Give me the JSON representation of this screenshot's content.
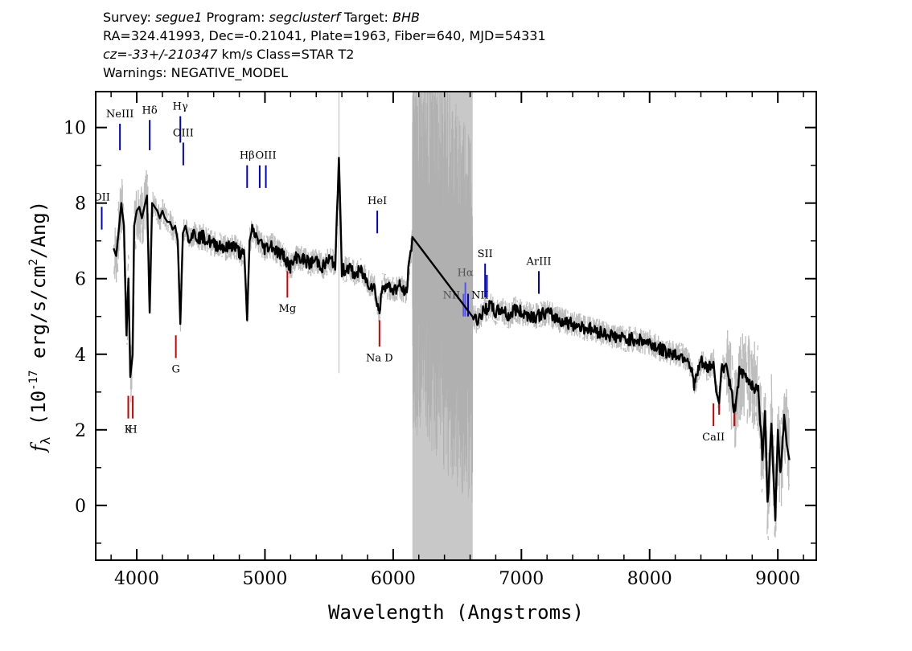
{
  "header": {
    "line1": {
      "survey_label": "Survey: ",
      "survey": "segue1",
      "program_label": " Program: ",
      "program": "segclusterf",
      "target_label": " Target: ",
      "target": "BHB"
    },
    "line2": "RA=324.41993, Dec=-0.21041, Plate=1963, Fiber=640, MJD=54331",
    "line3": {
      "cz": "cz=-33+/-210347",
      "rest": " km/s Class=STAR T2"
    },
    "line4": "Warnings: NEGATIVE_MODEL"
  },
  "chart_data": {
    "type": "line",
    "xlabel": "Wavelength (Angstroms)",
    "ylabel": "f_λ (10^-17 erg/s/cm^2/Ang)",
    "xlim": [
      3680,
      9300
    ],
    "ylim": [
      -1.45,
      10.95
    ],
    "x_ticks": [
      4000,
      5000,
      6000,
      7000,
      8000,
      9000
    ],
    "y_ticks": [
      0,
      2,
      4,
      6,
      8,
      10
    ],
    "masked_region": [
      6150,
      6620
    ],
    "series": [
      {
        "style": "smoothed",
        "color": "#000000",
        "x": [
          3820,
          3840,
          3860,
          3880,
          3900,
          3920,
          3935,
          3950,
          3968,
          3980,
          4000,
          4020,
          4040,
          4060,
          4080,
          4101,
          4120,
          4140,
          4160,
          4180,
          4200,
          4220,
          4240,
          4260,
          4280,
          4300,
          4320,
          4340,
          4360,
          4380,
          4400,
          4440,
          4480,
          4520,
          4560,
          4600,
          4650,
          4700,
          4750,
          4800,
          4840,
          4861,
          4880,
          4900,
          4950,
          5000,
          5050,
          5100,
          5150,
          5200,
          5250,
          5300,
          5350,
          5400,
          5450,
          5500,
          5550,
          5577,
          5600,
          5650,
          5700,
          5750,
          5800,
          5850,
          5893,
          5920,
          5950,
          6000,
          6050,
          6100,
          6150,
          6620,
          6650,
          6700,
          6750,
          6800,
          6850,
          6900,
          6950,
          7000,
          7100,
          7200,
          7300,
          7400,
          7500,
          7600,
          7700,
          7800,
          7900,
          8000,
          8100,
          8200,
          8300,
          8350,
          8400,
          8450,
          8498,
          8520,
          8542,
          8560,
          8600,
          8620,
          8662,
          8700,
          8750,
          8800,
          8850,
          8880,
          8900,
          8920,
          8950,
          8980,
          9000,
          9020,
          9050,
          9070,
          9090
        ],
        "y": [
          6.8,
          6.6,
          7.3,
          8.0,
          7.4,
          4.5,
          6.0,
          3.4,
          4.0,
          7.4,
          7.8,
          7.9,
          7.6,
          7.9,
          8.2,
          5.1,
          8.0,
          7.9,
          7.8,
          7.6,
          7.8,
          7.6,
          7.5,
          7.5,
          7.3,
          7.4,
          7.0,
          4.8,
          7.2,
          7.4,
          7.1,
          7.2,
          7.1,
          7.1,
          7.0,
          6.9,
          6.9,
          6.8,
          6.9,
          6.7,
          6.6,
          4.9,
          7.0,
          7.3,
          7.0,
          6.8,
          6.9,
          6.7,
          6.6,
          6.3,
          6.6,
          6.5,
          6.4,
          6.5,
          6.3,
          6.5,
          6.4,
          9.2,
          6.2,
          6.3,
          6.1,
          6.2,
          5.9,
          5.8,
          5.1,
          5.9,
          5.8,
          5.7,
          5.8,
          5.6,
          7.1,
          5.0,
          4.9,
          5.1,
          5.3,
          5.1,
          5.2,
          5.0,
          5.2,
          5.1,
          5.0,
          5.1,
          4.9,
          4.8,
          4.7,
          4.6,
          4.5,
          4.4,
          4.4,
          4.3,
          4.1,
          4.0,
          3.9,
          3.2,
          3.8,
          3.6,
          3.8,
          3.0,
          2.7,
          3.6,
          3.7,
          3.3,
          2.5,
          3.5,
          3.4,
          3.2,
          3.0,
          1.2,
          2.5,
          0.0,
          2.3,
          -0.4,
          2.0,
          0.8,
          2.4,
          1.6,
          1.2
        ]
      }
    ],
    "spectral_lines": [
      {
        "label": "OII",
        "x": 3727,
        "y1": 7.3,
        "y2": 7.9,
        "color": "#0000cc",
        "label_pos": "above"
      },
      {
        "label": "NeIII",
        "x": 3869,
        "y1": 9.4,
        "y2": 10.1,
        "color": "#0000cc",
        "label_pos": "above"
      },
      {
        "label": "Hδ",
        "x": 4101,
        "y1": 9.4,
        "y2": 10.2,
        "color": "#0000cc",
        "label_pos": "above"
      },
      {
        "label": "Hγ",
        "x": 4340,
        "y1": 9.6,
        "y2": 10.3,
        "color": "#0000cc",
        "label_pos": "above"
      },
      {
        "label": "OIII",
        "x": 4363,
        "y1": 9.0,
        "y2": 9.6,
        "color": "#0000cc",
        "label_pos": "above"
      },
      {
        "label": "Hβ",
        "x": 4861,
        "y1": 8.4,
        "y2": 9.0,
        "color": "#0000cc",
        "label_pos": "above"
      },
      {
        "label": "",
        "x": 4959,
        "y1": 8.4,
        "y2": 9.0,
        "color": "#0000cc",
        "label_pos": "none"
      },
      {
        "label": "OIII",
        "x": 5007,
        "y1": 8.4,
        "y2": 9.0,
        "color": "#0000cc",
        "label_pos": "above"
      },
      {
        "label": "HeI",
        "x": 5876,
        "y1": 7.2,
        "y2": 7.8,
        "color": "#0000cc",
        "label_pos": "above"
      },
      {
        "label": "NII",
        "x": 6548,
        "y1": 5.0,
        "y2": 5.6,
        "color": "#5555ee",
        "label_pos": "left"
      },
      {
        "label": "Hα",
        "x": 6563,
        "y1": 5.0,
        "y2": 5.9,
        "color": "#5555ee",
        "label_pos": "above"
      },
      {
        "label": "NII",
        "x": 6584,
        "y1": 5.0,
        "y2": 5.6,
        "color": "#0000cc",
        "label_pos": "right"
      },
      {
        "label": "SII",
        "x": 6717,
        "y1": 5.5,
        "y2": 6.4,
        "color": "#0000cc",
        "label_pos": "above"
      },
      {
        "label": "",
        "x": 6731,
        "y1": 5.5,
        "y2": 6.1,
        "color": "#0000cc",
        "label_pos": "none"
      },
      {
        "label": "ArIII",
        "x": 7136,
        "y1": 5.6,
        "y2": 6.2,
        "color": "#0000cc",
        "label_pos": "above"
      },
      {
        "label": "K",
        "x": 3934,
        "y1": 2.3,
        "y2": 2.9,
        "color": "#cc0000",
        "label_pos": "below"
      },
      {
        "label": "H",
        "x": 3969,
        "y1": 2.3,
        "y2": 2.9,
        "color": "#cc0000",
        "label_pos": "below"
      },
      {
        "label": "G",
        "x": 4305,
        "y1": 3.9,
        "y2": 4.5,
        "color": "#cc0000",
        "label_pos": "below"
      },
      {
        "label": "Mg",
        "x": 5175,
        "y1": 5.5,
        "y2": 6.2,
        "color": "#cc0000",
        "label_pos": "below"
      },
      {
        "label": "Na D",
        "x": 5893,
        "y1": 4.2,
        "y2": 4.9,
        "color": "#cc0000",
        "label_pos": "below"
      },
      {
        "label": "CaII",
        "x": 8498,
        "y1": 2.1,
        "y2": 2.7,
        "color": "#cc0000",
        "label_pos": "below"
      },
      {
        "label": "",
        "x": 8542,
        "y1": 2.4,
        "y2": 2.9,
        "color": "#cc0000",
        "label_pos": "none"
      },
      {
        "label": "",
        "x": 8662,
        "y1": 2.1,
        "y2": 2.7,
        "color": "#cc0000",
        "label_pos": "none"
      }
    ]
  }
}
